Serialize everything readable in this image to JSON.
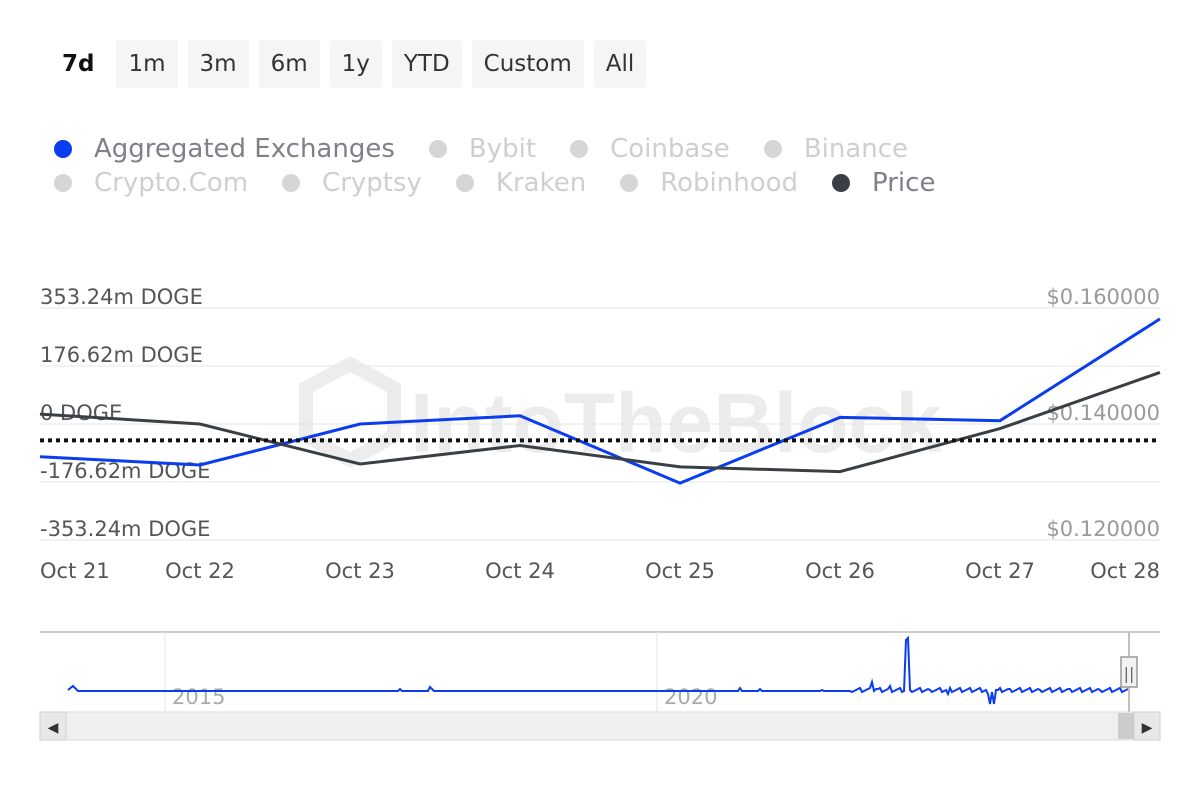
{
  "range_buttons": [
    "7d",
    "1m",
    "3m",
    "6m",
    "1y",
    "YTD",
    "Custom",
    "All"
  ],
  "active_range": "7d",
  "legend": [
    {
      "label": "Aggregated Exchanges",
      "color": "#0a3cf0",
      "active": true
    },
    {
      "label": "Bybit",
      "color": "#d6d6d6",
      "active": false
    },
    {
      "label": "Coinbase",
      "color": "#d6d6d6",
      "active": false
    },
    {
      "label": "Binance",
      "color": "#d6d6d6",
      "active": false
    },
    {
      "label": "Crypto.Com",
      "color": "#d6d6d6",
      "active": false
    },
    {
      "label": "Cryptsy",
      "color": "#d6d6d6",
      "active": false
    },
    {
      "label": "Kraken",
      "color": "#d6d6d6",
      "active": false
    },
    {
      "label": "Robinhood",
      "color": "#d6d6d6",
      "active": false
    },
    {
      "label": "Price",
      "color": "#3a3f46",
      "active": true
    }
  ],
  "chart_data": {
    "type": "line",
    "x": [
      "Oct 21",
      "Oct 22",
      "Oct 23",
      "Oct 24",
      "Oct 25",
      "Oct 26",
      "Oct 27",
      "Oct 28"
    ],
    "y_left": {
      "ticks": [
        "353.24m DOGE",
        "176.62m DOGE",
        "0 DOGE",
        "-176.62m DOGE",
        "-353.24m DOGE"
      ],
      "tick_values": [
        353.24,
        176.62,
        0,
        -176.62,
        -353.24
      ],
      "range": [
        -353.24,
        353.24
      ],
      "unit": "m DOGE"
    },
    "y_right": {
      "ticks": [
        "$0.160000",
        "$0.140000",
        "$0.120000"
      ],
      "tick_values": [
        0.16,
        0.14,
        0.12
      ],
      "range": [
        0.12,
        0.16
      ]
    },
    "series": [
      {
        "name": "Aggregated Exchanges",
        "axis": "left",
        "color": "#0a3cf0",
        "values": [
          -100,
          -125,
          0,
          25,
          -180,
          20,
          10,
          320
        ]
      },
      {
        "name": "Price",
        "axis": "right",
        "color": "#3a3f46",
        "values": [
          0.1417,
          0.14,
          0.1331,
          0.1363,
          0.1326,
          0.1318,
          0.1392,
          0.1489
        ]
      }
    ],
    "reference_line": {
      "axis": "left",
      "value": -50,
      "style": "dotted"
    },
    "watermark": "IntoTheBlock",
    "grid": true
  },
  "navigator": {
    "year_labels": [
      "2015",
      "2020"
    ],
    "scroll_left_glyph": "◀",
    "scroll_right_glyph": "▶",
    "handle_glyph": "||"
  }
}
